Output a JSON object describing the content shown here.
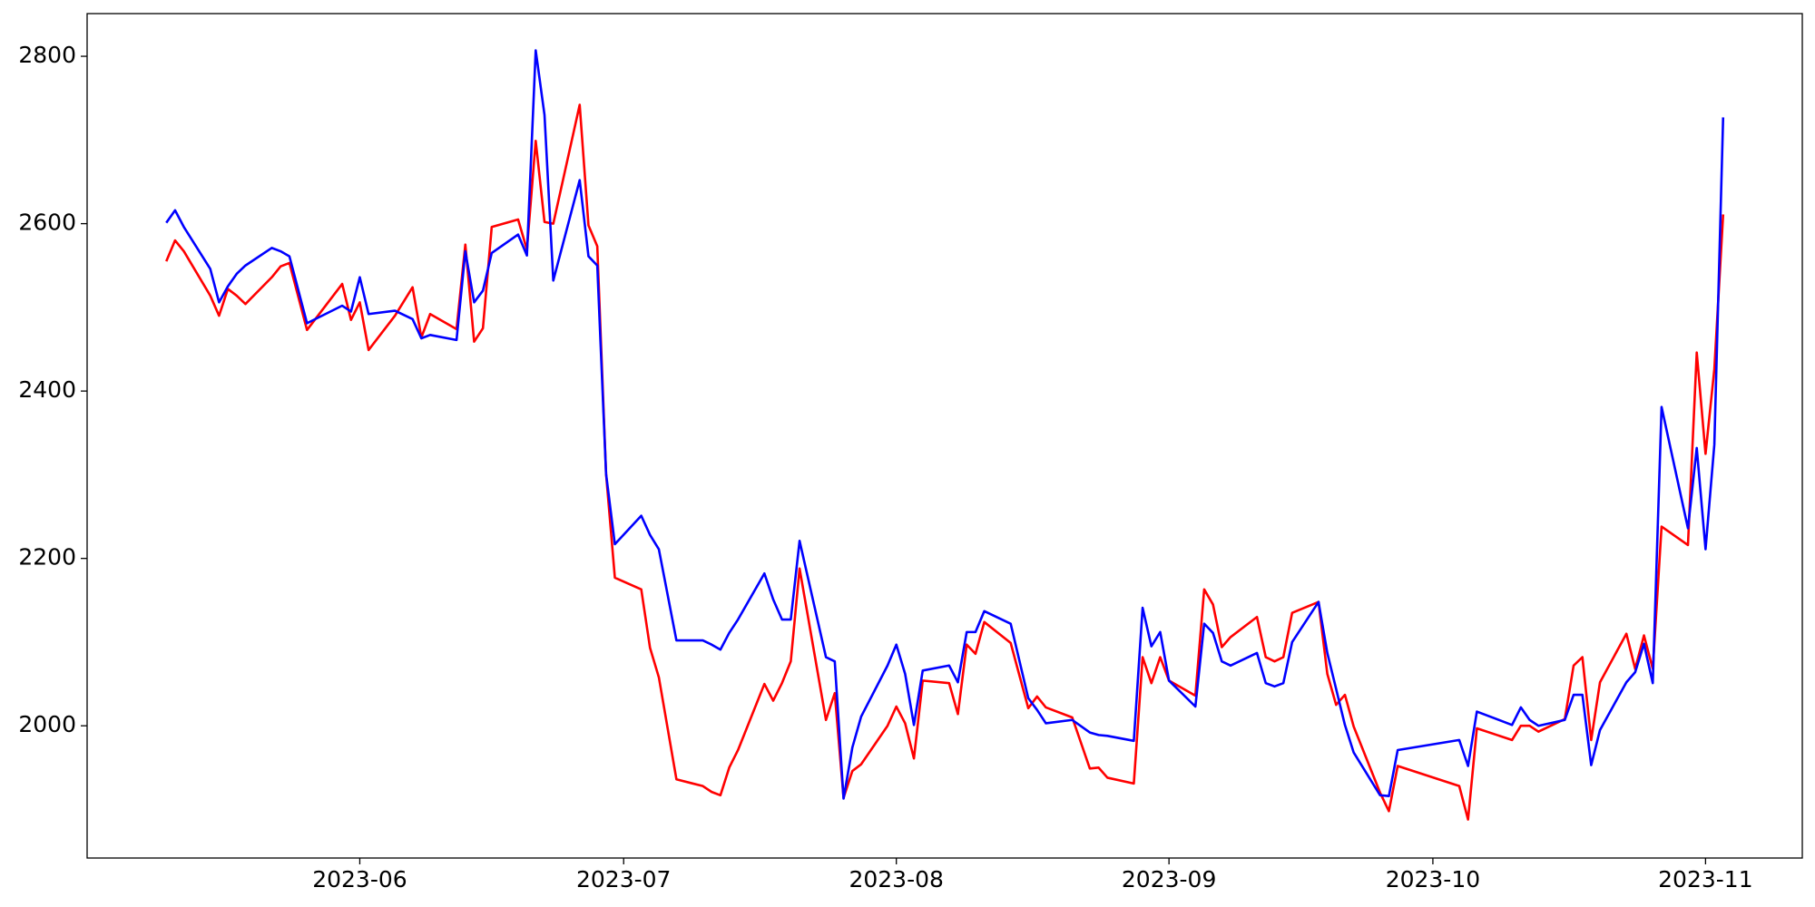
{
  "chart_data": {
    "type": "line",
    "x": [
      130,
      131,
      132,
      135,
      136,
      137,
      138,
      139,
      142,
      143,
      144,
      146,
      150,
      151,
      152,
      153,
      156,
      158,
      159,
      160,
      163,
      164,
      165,
      166,
      167,
      170,
      171,
      172,
      173,
      174,
      177,
      178,
      179,
      180,
      181,
      184,
      185,
      186,
      188,
      191,
      192,
      193,
      194,
      195,
      198,
      199,
      200,
      201,
      202,
      205,
      206,
      207,
      208,
      209,
      212,
      213,
      214,
      215,
      216,
      219,
      220,
      221,
      222,
      223,
      226,
      228,
      229,
      230,
      233,
      235,
      236,
      237,
      240,
      241,
      242,
      243,
      244,
      247,
      248,
      249,
      250,
      251,
      254,
      255,
      256,
      257,
      258,
      261,
      262,
      263,
      264,
      265,
      268,
      269,
      270,
      277,
      278,
      279,
      283,
      284,
      285,
      286,
      289,
      290,
      291,
      292,
      293,
      296,
      297,
      298,
      299,
      300,
      303,
      304,
      305,
      306,
      307
    ],
    "series": [
      {
        "color": "#ff0000",
        "values": [
          2555,
          2580,
          2567,
          2514,
          2490,
          2522,
          2514,
          2504,
          2536,
          2549,
          2553,
          2473,
          2528,
          2485,
          2506,
          2449,
          2490,
          2524,
          2464,
          2492,
          2474,
          2575,
          2459,
          2475,
          2596,
          2605,
          2569,
          2699,
          2602,
          2600,
          2742,
          2598,
          2573,
          2301,
          2177,
          2163,
          2093,
          2058,
          1936,
          1928,
          1921,
          1917,
          1950,
          1971,
          2050,
          2030,
          2051,
          2077,
          2188,
          2007,
          2039,
          1914,
          1946,
          1954,
          2000,
          2023,
          2003,
          1961,
          2054,
          2051,
          2014,
          2097,
          2086,
          2124,
          2099,
          2021,
          2035,
          2022,
          2010,
          1949,
          1950,
          1938,
          1931,
          2082,
          2051,
          2082,
          2054,
          2036,
          2163,
          2145,
          2094,
          2106,
          2130,
          2082,
          2077,
          2082,
          2135,
          2148,
          2062,
          2025,
          2037,
          1999,
          1920,
          1898,
          1952,
          1928,
          1888,
          1997,
          1983,
          2000,
          2000,
          1993,
          2008,
          2072,
          2082,
          1983,
          2052,
          2110,
          2068,
          2108,
          2068,
          2238,
          2216,
          2446,
          2325,
          2426,
          2611
        ]
      },
      {
        "color": "#0000ff",
        "values": [
          2601,
          2616,
          2596,
          2546,
          2506,
          2525,
          2540,
          2550,
          2571,
          2567,
          2561,
          2481,
          2502,
          2495,
          2536,
          2492,
          2496,
          2486,
          2463,
          2467,
          2461,
          2567,
          2506,
          2520,
          2565,
          2587,
          2562,
          2807,
          2730,
          2532,
          2652,
          2561,
          2550,
          2301,
          2217,
          2251,
          2228,
          2211,
          2102,
          2102,
          2097,
          2091,
          2111,
          2127,
          2182,
          2151,
          2127,
          2127,
          2221,
          2082,
          2077,
          1913,
          1974,
          2011,
          2072,
          2097,
          2062,
          2001,
          2066,
          2072,
          2052,
          2112,
          2112,
          2137,
          2122,
          2033,
          2019,
          2003,
          2007,
          1992,
          1989,
          1988,
          1982,
          2141,
          2095,
          2112,
          2054,
          2023,
          2122,
          2111,
          2077,
          2072,
          2087,
          2051,
          2047,
          2051,
          2100,
          2148,
          2087,
          2044,
          2001,
          1968,
          1917,
          1916,
          1971,
          1983,
          1952,
          2017,
          2001,
          2022,
          2007,
          2000,
          2007,
          2037,
          2037,
          1953,
          1995,
          2052,
          2064,
          2098,
          2051,
          2381,
          2236,
          2332,
          2211,
          2336,
          2727
        ]
      }
    ],
    "xlim": [
      121,
      316
    ],
    "xticks": [
      {
        "value": 152,
        "label": "2023-06"
      },
      {
        "value": 182,
        "label": "2023-07"
      },
      {
        "value": 213,
        "label": "2023-08"
      },
      {
        "value": 244,
        "label": "2023-09"
      },
      {
        "value": 274,
        "label": "2023-10"
      },
      {
        "value": 305,
        "label": "2023-11"
      }
    ],
    "ylim": [
      1842,
      2851
    ],
    "yticks": [
      2000,
      2200,
      2400,
      2600,
      2800
    ],
    "grid": false
  }
}
